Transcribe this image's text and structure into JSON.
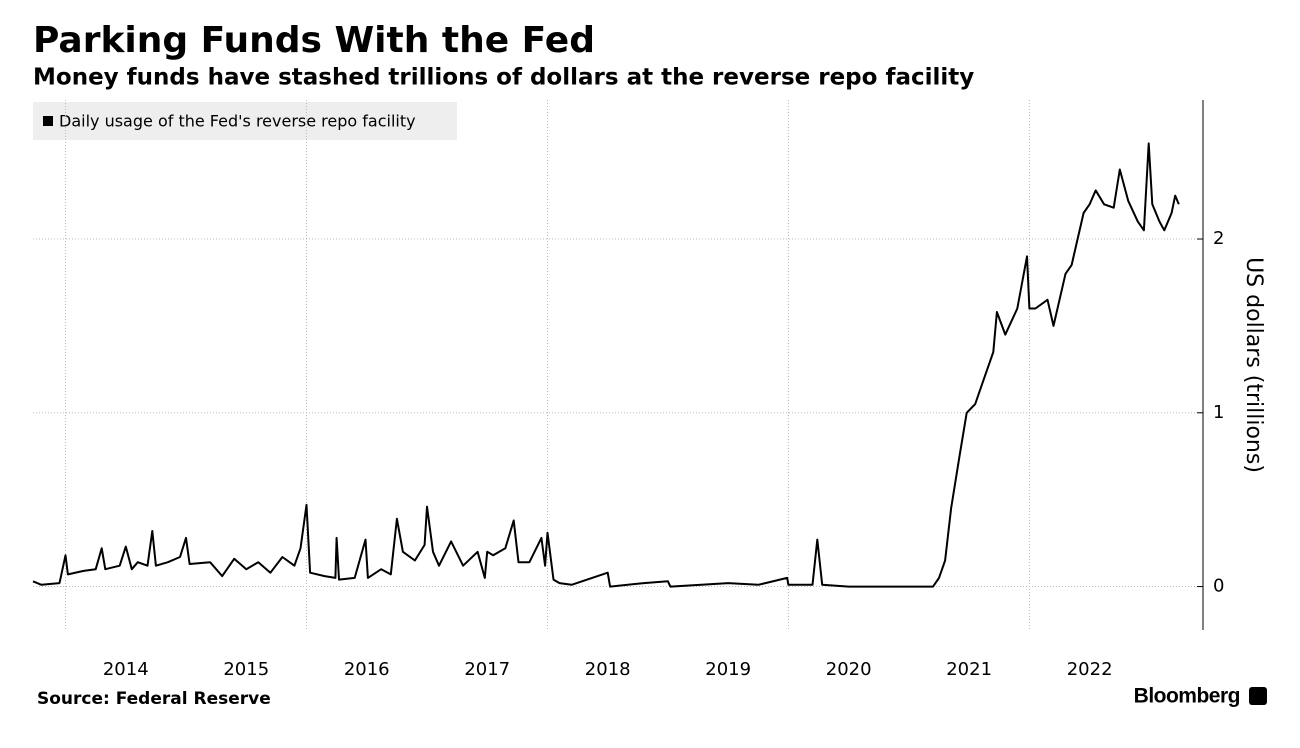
{
  "chart_data": {
    "type": "line",
    "title": "Parking Funds With the Fed",
    "subtitle": "Money funds have stashed trillions of dollars at the reverse repo facility",
    "y_label": "US dollars (trillions)",
    "source": "Source: Federal Reserve",
    "brand": "Bloomberg",
    "x": [
      2013.73,
      2013.8,
      2013.95,
      2014.0,
      2014.02,
      2014.15,
      2014.25,
      2014.3,
      2014.33,
      2014.45,
      2014.5,
      2014.55,
      2014.6,
      2014.68,
      2014.72,
      2014.75,
      2014.85,
      2014.95,
      2015.0,
      2015.03,
      2015.2,
      2015.3,
      2015.4,
      2015.5,
      2015.6,
      2015.7,
      2015.8,
      2015.9,
      2015.95,
      2016.0,
      2016.03,
      2016.15,
      2016.24,
      2016.25,
      2016.27,
      2016.4,
      2016.49,
      2016.51,
      2016.62,
      2016.7,
      2016.75,
      2016.8,
      2016.9,
      2016.98,
      2017.0,
      2017.05,
      2017.1,
      2017.2,
      2017.3,
      2017.42,
      2017.48,
      2017.5,
      2017.55,
      2017.65,
      2017.72,
      2017.76,
      2017.85,
      2017.95,
      2017.98,
      2018.0,
      2018.05,
      2018.1,
      2018.2,
      2018.5,
      2018.52,
      2018.8,
      2019.0,
      2019.02,
      2019.5,
      2019.75,
      2019.99,
      2020.0,
      2020.2,
      2020.24,
      2020.28,
      2020.5,
      2021.0,
      2021.2,
      2021.25,
      2021.3,
      2021.35,
      2021.42,
      2021.48,
      2021.55,
      2021.6,
      2021.7,
      2021.73,
      2021.8,
      2021.9,
      2021.98,
      2022.0,
      2022.05,
      2022.15,
      2022.2,
      2022.3,
      2022.35,
      2022.4,
      2022.45,
      2022.5,
      2022.55,
      2022.62,
      2022.7,
      2022.75,
      2022.82,
      2022.9,
      2022.95,
      2022.99,
      2023.02,
      2023.08,
      2023.12,
      2023.18,
      2023.21,
      2023.24
    ],
    "series": [
      {
        "name": "Daily usage of the Fed's reverse repo facility",
        "color": "#000000",
        "values": [
          0.03,
          0.01,
          0.02,
          0.18,
          0.07,
          0.09,
          0.1,
          0.22,
          0.1,
          0.12,
          0.23,
          0.1,
          0.14,
          0.12,
          0.32,
          0.12,
          0.14,
          0.17,
          0.28,
          0.13,
          0.14,
          0.06,
          0.16,
          0.1,
          0.14,
          0.08,
          0.17,
          0.12,
          0.22,
          0.47,
          0.08,
          0.06,
          0.05,
          0.28,
          0.04,
          0.05,
          0.27,
          0.05,
          0.1,
          0.07,
          0.39,
          0.2,
          0.15,
          0.24,
          0.46,
          0.2,
          0.12,
          0.26,
          0.12,
          0.2,
          0.05,
          0.2,
          0.18,
          0.22,
          0.38,
          0.14,
          0.14,
          0.28,
          0.12,
          0.31,
          0.04,
          0.02,
          0.01,
          0.08,
          0.0,
          0.02,
          0.03,
          0.0,
          0.02,
          0.01,
          0.05,
          0.01,
          0.01,
          0.27,
          0.01,
          0.0,
          0.0,
          0.0,
          0.05,
          0.15,
          0.45,
          0.75,
          1.0,
          1.05,
          1.15,
          1.35,
          1.58,
          1.45,
          1.6,
          1.9,
          1.6,
          1.6,
          1.65,
          1.5,
          1.8,
          1.85,
          2.0,
          2.15,
          2.2,
          2.28,
          2.2,
          2.18,
          2.4,
          2.22,
          2.1,
          2.05,
          2.55,
          2.2,
          2.1,
          2.05,
          2.15,
          2.25,
          2.2
        ]
      }
    ],
    "xlim": [
      2013.73,
      2023.25
    ],
    "xticks": [
      2014,
      2015,
      2016,
      2017,
      2018,
      2019,
      2020,
      2021,
      2022
    ],
    "xgrid": [
      2014,
      2016,
      2018,
      2020,
      2022
    ],
    "ylim": [
      -0.25,
      2.8
    ],
    "yticks": [
      0,
      1,
      2
    ],
    "grid": true
  }
}
